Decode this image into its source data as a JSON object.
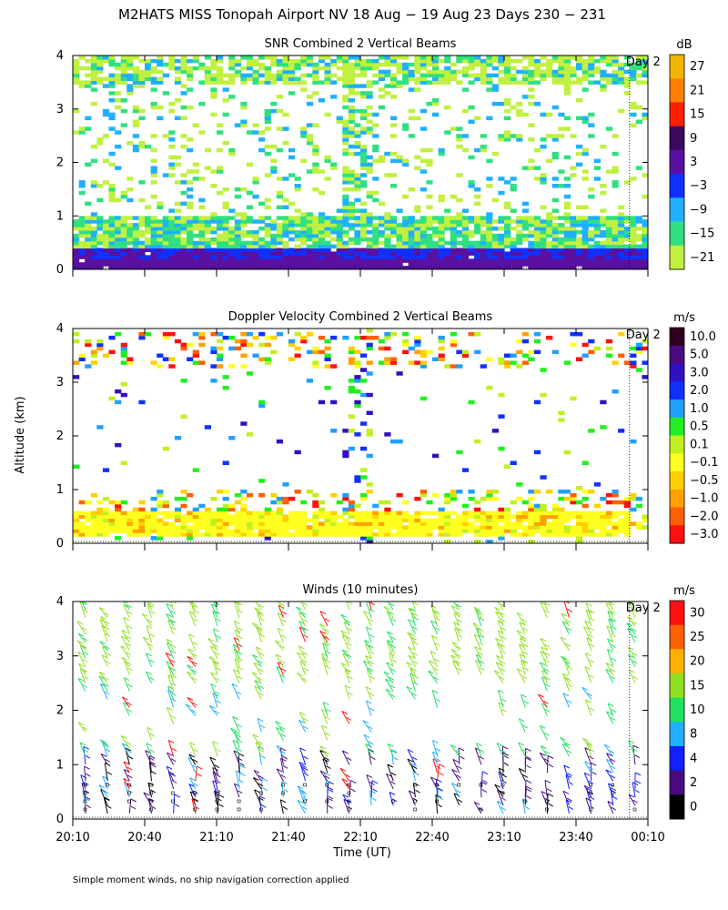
{
  "figure": {
    "title": "M2HATS MISS Tonopah Airport NV  18 Aug − 19 Aug 23 Days 230 − 231",
    "ylabel": "Altitude (km)",
    "xlabel": "Time (UT)",
    "footnote": "Simple moment winds, no ship navigation correction applied",
    "day_marker": "Day 2"
  },
  "chart_data": [
    {
      "type": "heatmap",
      "title": "SNR Combined 2 Vertical Beams",
      "x_ticks": [
        "20:10",
        "20:40",
        "21:10",
        "21:40",
        "22:10",
        "22:40",
        "23:10",
        "23:40",
        "00:10"
      ],
      "y_ticks": [
        "0",
        "1",
        "2",
        "3",
        "4"
      ],
      "ylim": [
        0,
        4
      ],
      "colorbar": {
        "unit": "dB",
        "labels": [
          "27",
          "21",
          "15",
          "9",
          "3",
          "−3",
          "−9",
          "−15",
          "−21"
        ],
        "colors": [
          "#f0b400",
          "#ff8000",
          "#ff2000",
          "#3a0a60",
          "#5a10a0",
          "#1030ff",
          "#20b0ff",
          "#30e080",
          "#c0f040"
        ]
      }
    },
    {
      "type": "heatmap",
      "title": "Doppler Velocity Combined 2 Vertical Beams",
      "x_ticks": [
        "20:10",
        "20:40",
        "21:10",
        "21:40",
        "22:10",
        "22:40",
        "23:10",
        "23:40",
        "00:10"
      ],
      "y_ticks": [
        "0",
        "1",
        "2",
        "3",
        "4"
      ],
      "ylim": [
        0,
        4
      ],
      "colorbar": {
        "unit": "m/s",
        "labels": [
          "10.0",
          "5.0",
          "3.0",
          "2.0",
          "1.0",
          "0.5",
          "0.1",
          "−0.1",
          "−0.5",
          "−1.0",
          "−2.0",
          "−3.0"
        ],
        "colors": [
          "#300020",
          "#4a0a80",
          "#3010c0",
          "#1030ff",
          "#20a0ff",
          "#20f020",
          "#c0f020",
          "#ffff20",
          "#ffd000",
          "#ffa000",
          "#ff6000",
          "#ff1010"
        ]
      }
    },
    {
      "type": "scatter",
      "title": "Winds (10 minutes)",
      "x_ticks": [
        "20:10",
        "20:40",
        "21:10",
        "21:40",
        "22:10",
        "22:40",
        "23:10",
        "23:40",
        "00:10"
      ],
      "y_ticks": [
        "0",
        "1",
        "2",
        "3",
        "4"
      ],
      "ylim": [
        0,
        4
      ],
      "colorbar": {
        "unit": "m/s",
        "labels": [
          "30",
          "25",
          "20",
          "15",
          "10",
          "8",
          "4",
          "2",
          "0"
        ],
        "colors": [
          "#ff1010",
          "#ff6000",
          "#ffb000",
          "#90e020",
          "#20e060",
          "#20b0ff",
          "#1020ff",
          "#4a0a80",
          "#000000"
        ]
      }
    }
  ]
}
